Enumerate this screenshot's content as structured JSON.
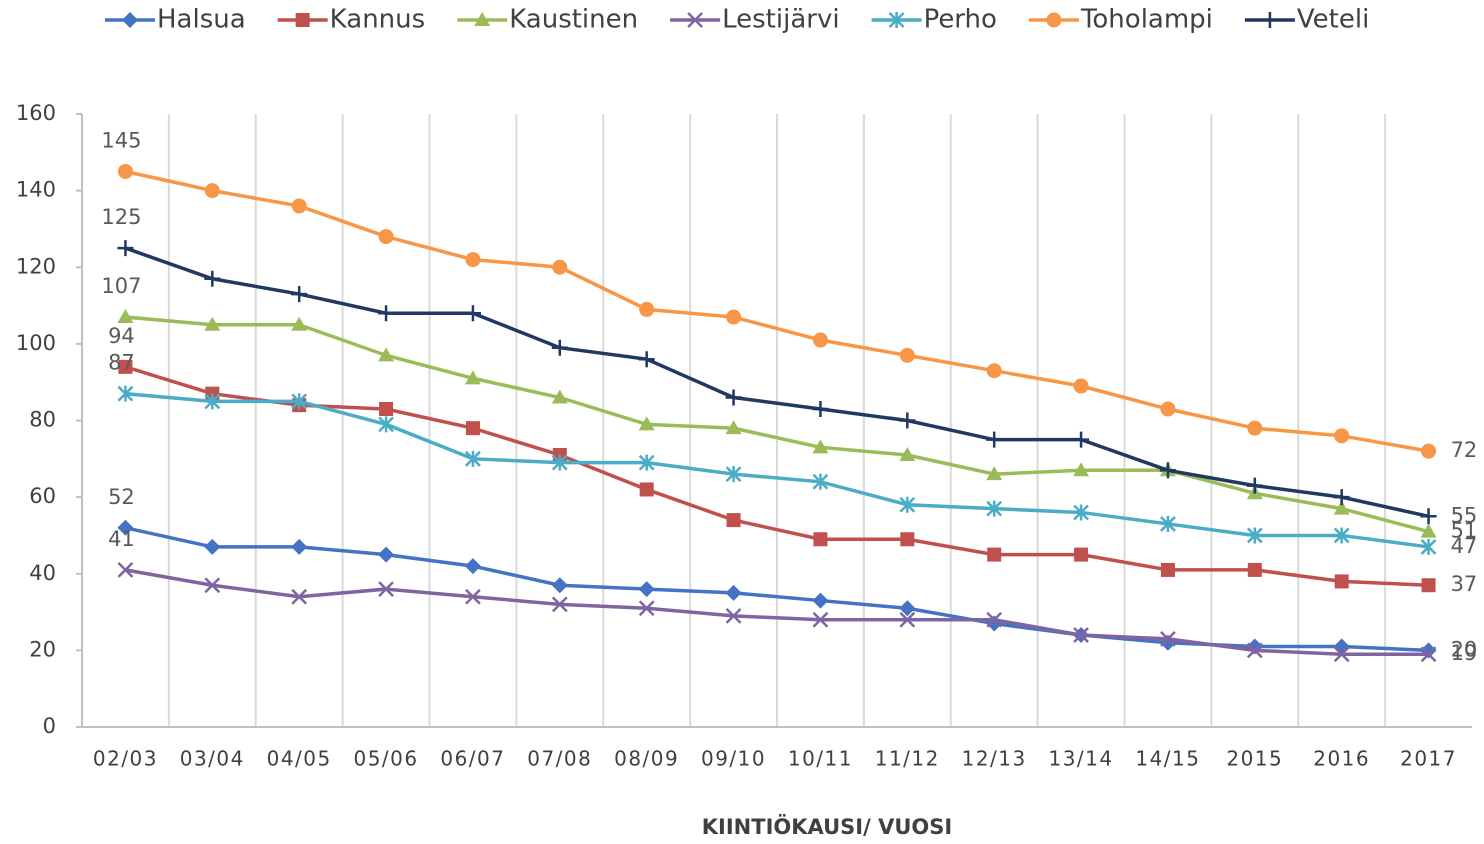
{
  "chart_data": {
    "type": "line",
    "categories": [
      "02/03",
      "03/04",
      "04/05",
      "05/06",
      "06/07",
      "07/08",
      "08/09",
      "09/10",
      "10/11",
      "11/12",
      "12/13",
      "13/14",
      "14/15",
      "2015",
      "2016",
      "2017"
    ],
    "x_label": "KIINTIÖKAUSI/ VUOSI",
    "ylim": [
      0,
      160
    ],
    "yticks": [
      0,
      20,
      40,
      60,
      80,
      100,
      120,
      140,
      160
    ],
    "grid": "vertical",
    "legend": "top",
    "data_labels": [
      "first",
      "last"
    ],
    "series": [
      {
        "name": "Halsua",
        "color": "#4472c4",
        "marker": "diamond",
        "values": [
          52,
          47,
          47,
          45,
          42,
          37,
          36,
          35,
          33,
          31,
          27,
          24,
          22,
          21,
          21,
          20
        ]
      },
      {
        "name": "Kannus",
        "color": "#c0504d",
        "marker": "square",
        "values": [
          94,
          87,
          84,
          83,
          78,
          71,
          62,
          54,
          49,
          49,
          45,
          45,
          41,
          41,
          38,
          37
        ]
      },
      {
        "name": "Kaustinen",
        "color": "#9bbb59",
        "marker": "triangle",
        "values": [
          107,
          105,
          105,
          97,
          91,
          86,
          79,
          78,
          73,
          71,
          66,
          67,
          67,
          61,
          57,
          51
        ]
      },
      {
        "name": "Lestijärvi",
        "color": "#8064a2",
        "marker": "x",
        "values": [
          41,
          37,
          34,
          36,
          34,
          32,
          31,
          29,
          28,
          28,
          28,
          24,
          23,
          20,
          19,
          19
        ]
      },
      {
        "name": "Perho",
        "color": "#4bacc6",
        "marker": "asterisk",
        "values": [
          87,
          85,
          85,
          79,
          70,
          69,
          69,
          66,
          64,
          58,
          57,
          56,
          53,
          50,
          50,
          47
        ]
      },
      {
        "name": "Toholampi",
        "color": "#f79646",
        "marker": "circle",
        "values": [
          145,
          140,
          136,
          128,
          122,
          120,
          109,
          107,
          101,
          97,
          93,
          89,
          83,
          78,
          76,
          72
        ]
      },
      {
        "name": "Veteli",
        "color": "#1f3864",
        "marker": "plus",
        "values": [
          125,
          117,
          113,
          108,
          108,
          99,
          96,
          86,
          83,
          80,
          75,
          75,
          67,
          63,
          60,
          55
        ]
      }
    ]
  }
}
